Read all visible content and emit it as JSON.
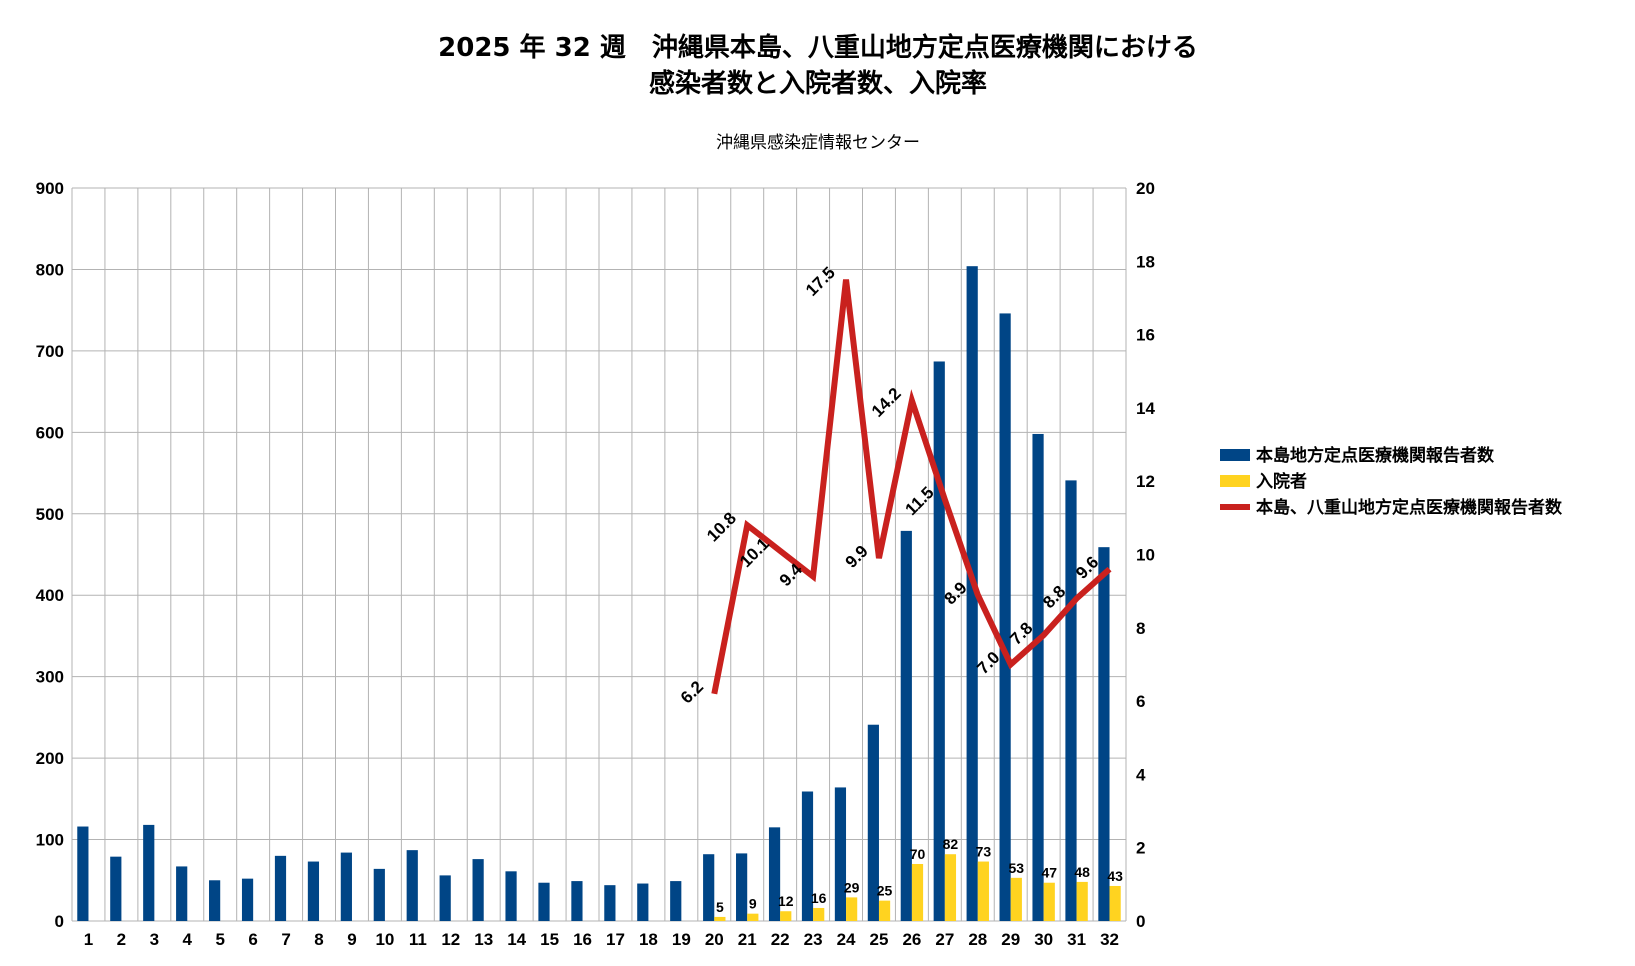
{
  "chart_data": {
    "type": "bar",
    "title_line1": "2025 年 32 週　沖縄県本島、八重山地方定点医療機関における",
    "title_line2": "感染者数と入院者数、入院率",
    "subtitle": "沖縄県感染症情報センター",
    "categories": [
      "1",
      "2",
      "3",
      "4",
      "5",
      "6",
      "7",
      "8",
      "9",
      "10",
      "11",
      "12",
      "13",
      "14",
      "15",
      "16",
      "17",
      "18",
      "19",
      "20",
      "21",
      "22",
      "23",
      "24",
      "25",
      "26",
      "27",
      "28",
      "29",
      "30",
      "31",
      "32"
    ],
    "y_left": {
      "min": 0,
      "max": 900,
      "step": 100,
      "ticks": [
        "0",
        "100",
        "200",
        "300",
        "400",
        "500",
        "600",
        "700",
        "800",
        "900"
      ]
    },
    "y_right": {
      "min": 0,
      "max": 20,
      "step": 2,
      "ticks": [
        "0",
        "2",
        "4",
        "6",
        "8",
        "10",
        "12",
        "14",
        "16",
        "18",
        "20"
      ]
    },
    "grid": true,
    "legend_position": "right",
    "series": [
      {
        "name": "本島地方定点医療機関報告者数",
        "kind": "bar",
        "axis": "left",
        "color": "#004586",
        "values": [
          116,
          79,
          118,
          67,
          50,
          52,
          80,
          73,
          84,
          64,
          87,
          56,
          76,
          61,
          47,
          49,
          44,
          46,
          49,
          82,
          83,
          115,
          159,
          164,
          241,
          479,
          687,
          804,
          746,
          598,
          541,
          459
        ],
        "labels": []
      },
      {
        "name": "入院者",
        "kind": "bar",
        "axis": "left",
        "color": "#ffd320",
        "values": [
          null,
          null,
          null,
          null,
          null,
          null,
          null,
          null,
          null,
          null,
          null,
          null,
          null,
          null,
          null,
          null,
          null,
          null,
          null,
          5,
          9,
          12,
          16,
          29,
          25,
          70,
          82,
          73,
          53,
          47,
          48,
          43
        ],
        "labels": [
          null,
          null,
          null,
          null,
          null,
          null,
          null,
          null,
          null,
          null,
          null,
          null,
          null,
          null,
          null,
          null,
          null,
          null,
          null,
          "5",
          "9",
          "12",
          "16",
          "29",
          "25",
          "70",
          "82",
          "73",
          "53",
          "47",
          "48",
          "43"
        ]
      },
      {
        "name": "本島、八重山地方定点医療機関報告者数",
        "kind": "line",
        "axis": "right",
        "color": "#c9211e",
        "values": [
          null,
          null,
          null,
          null,
          null,
          null,
          null,
          null,
          null,
          null,
          null,
          null,
          null,
          null,
          null,
          null,
          null,
          null,
          null,
          6.2,
          10.8,
          10.1,
          9.4,
          17.5,
          9.9,
          14.2,
          11.5,
          8.9,
          7.0,
          7.8,
          8.8,
          9.6
        ],
        "labels": [
          null,
          null,
          null,
          null,
          null,
          null,
          null,
          null,
          null,
          null,
          null,
          null,
          null,
          null,
          null,
          null,
          null,
          null,
          null,
          "6.2",
          "10.8",
          "10.1",
          "9.4",
          "17.5",
          "9.9",
          "14.2",
          "11.5",
          "8.9",
          "7.0",
          "7.8",
          "8.8",
          "9.6"
        ]
      }
    ]
  }
}
